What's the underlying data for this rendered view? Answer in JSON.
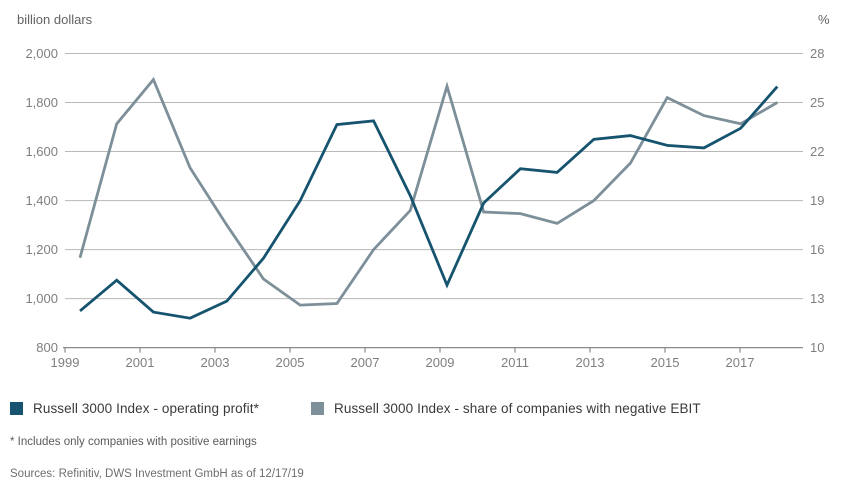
{
  "chart_data": {
    "type": "line",
    "x": [
      1999,
      2000,
      2001,
      2002,
      2003,
      2004,
      2005,
      2006,
      2007,
      2008,
      2009,
      2010,
      2011,
      2012,
      2013,
      2014,
      2015,
      2016,
      2017,
      2018
    ],
    "series": [
      {
        "name": "Russell 3000 Index - operating profit*",
        "axis": "left",
        "color": "#15536e",
        "values": [
          950,
          1075,
          945,
          920,
          990,
          1165,
          1400,
          1710,
          1725,
          1420,
          1055,
          1390,
          1530,
          1515,
          1650,
          1665,
          1625,
          1615,
          1695,
          1865
        ]
      },
      {
        "name": "Russell 3000 Index  - share of companies with negative EBIT",
        "axis": "right",
        "color": "#7d8f99",
        "values": [
          15.5,
          23.7,
          26.4,
          21.0,
          17.5,
          14.2,
          12.6,
          12.7,
          16.0,
          18.4,
          26.0,
          18.3,
          18.2,
          17.6,
          19.0,
          21.3,
          25.3,
          24.2,
          23.7,
          25.0
        ]
      }
    ],
    "left_axis": {
      "title": "billion dollars",
      "range": [
        800,
        2000
      ],
      "tick_values": [
        2000,
        1800,
        1600,
        1400,
        1200,
        1000,
        800
      ],
      "tick_labels": [
        "2,000",
        "1,800",
        "1,600",
        "1,400",
        "1,200",
        "1,000",
        "800"
      ]
    },
    "right_axis": {
      "title": "%",
      "range": [
        10,
        28
      ],
      "tick_values": [
        28,
        25,
        22,
        19,
        16,
        13,
        10
      ],
      "tick_labels": [
        "28",
        "25",
        "22",
        "19",
        "16",
        "13",
        "10"
      ]
    },
    "x_axis": {
      "tick_labels": [
        "1999",
        "2001",
        "2003",
        "2005",
        "2007",
        "2009",
        "2011",
        "2013",
        "2015",
        "2017"
      ]
    },
    "grid": true,
    "legend_position": "bottom"
  },
  "footnote": "* Includes only companies with positive earnings",
  "sources": "Sources: Refinitiv, DWS Investment GmbH as of 12/17/19",
  "style": {
    "grid_color": "#b8b8b8",
    "axis_color": "#8a8a8a",
    "line_width": 2.8
  }
}
